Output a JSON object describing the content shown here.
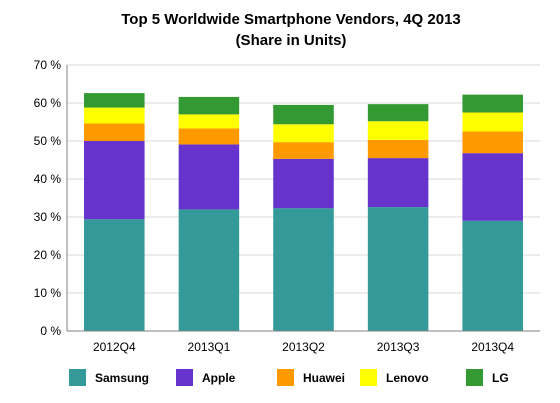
{
  "chart_data": {
    "type": "bar",
    "stacked": true,
    "title": "Top 5 Worldwide Smartphone Vendors, 4Q 2013",
    "subtitle": "(Share in Units)",
    "categories": [
      "2012Q4",
      "2013Q1",
      "2013Q2",
      "2013Q3",
      "2013Q4"
    ],
    "series": [
      {
        "name": "Samsung",
        "color": "#339999",
        "values": [
          29.4,
          32.0,
          32.3,
          32.6,
          29.0
        ]
      },
      {
        "name": "Apple",
        "color": "#6633cc",
        "values": [
          20.6,
          17.1,
          13.0,
          12.9,
          17.8
        ]
      },
      {
        "name": "Huawei",
        "color": "#ff9900",
        "values": [
          4.6,
          4.2,
          4.4,
          4.8,
          5.7
        ]
      },
      {
        "name": "Lenovo",
        "color": "#ffff00",
        "values": [
          4.2,
          3.7,
          4.7,
          4.9,
          5.0
        ]
      },
      {
        "name": "LG",
        "color": "#339933",
        "values": [
          3.8,
          4.6,
          5.1,
          4.5,
          4.7
        ]
      }
    ],
    "ylim": [
      0,
      70
    ],
    "yticks": [
      0,
      10,
      20,
      30,
      40,
      50,
      60,
      70
    ],
    "ytick_suffix": " %",
    "grid": true,
    "legend": "bottom"
  }
}
